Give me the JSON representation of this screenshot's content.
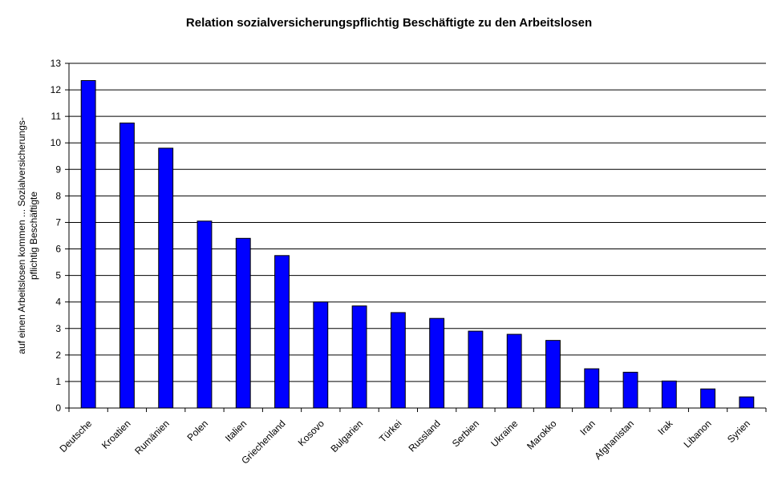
{
  "chart_data": {
    "type": "bar",
    "title": "Relation sozialversicherungspflichtig Beschäftigte zu den Arbeitslosen",
    "ylabel_line1": "auf einen Arbeitslosen kommen ... Sozialversicherungs-",
    "ylabel_line2": "pflichtig Beschäftigte",
    "xlabel": "",
    "ylim": [
      0,
      13
    ],
    "yticks": [
      0,
      1,
      2,
      3,
      4,
      5,
      6,
      7,
      8,
      9,
      10,
      11,
      12,
      13
    ],
    "grid": true,
    "legend": "none",
    "bar_color": "#0000FF",
    "categories": [
      "Deutsche",
      "Kroatien",
      "Rumänien",
      "Polen",
      "Italien",
      "Griechenland",
      "Kosovo",
      "Bulgarien",
      "Türkei",
      "Russland",
      "Serbien",
      "Ukraine",
      "Marokko",
      "Iran",
      "Afghanistan",
      "Irak",
      "Libanon",
      "Syrien"
    ],
    "values": [
      12.35,
      10.75,
      9.8,
      7.05,
      6.4,
      5.75,
      4.0,
      3.85,
      3.6,
      3.38,
      2.9,
      2.78,
      2.55,
      1.48,
      1.35,
      1.02,
      0.72,
      0.42
    ]
  }
}
